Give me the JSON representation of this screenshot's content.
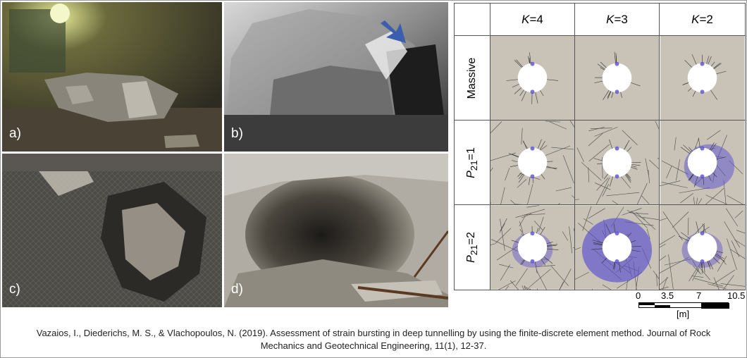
{
  "photos": {
    "a": {
      "label": "a)"
    },
    "b": {
      "label": "b)"
    },
    "c": {
      "label": "c)"
    },
    "d": {
      "label": "d)"
    }
  },
  "model_grid": {
    "columns": [
      {
        "var": "K",
        "value": "=4"
      },
      {
        "var": "K",
        "value": "=3"
      },
      {
        "var": "K",
        "value": "=2"
      }
    ],
    "rows": [
      {
        "label": "Massive",
        "var": "",
        "sub": "",
        "value": ""
      },
      {
        "label": "",
        "var": "P",
        "sub": "21",
        "value": "=1"
      },
      {
        "label": "",
        "var": "P",
        "sub": "21",
        "value": "=2"
      }
    ]
  },
  "scale_bar": {
    "ticks": [
      "0",
      "3.5",
      "7",
      "10.5"
    ],
    "unit": "[m]"
  },
  "citation": {
    "line1": "Vazaios, I., Diederichs, M. S., & Vlachopoulos, N. (2019). Assessment of strain bursting in deep tunnelling by using the finite-discrete element method. Journal of Rock",
    "line2": "Mechanics and Geotechnical Engineering, 11(1), 12-37."
  },
  "colors": {
    "damage": "#5a4fd0",
    "rock": "#c9c3b7",
    "cavity": "#ffffff"
  }
}
